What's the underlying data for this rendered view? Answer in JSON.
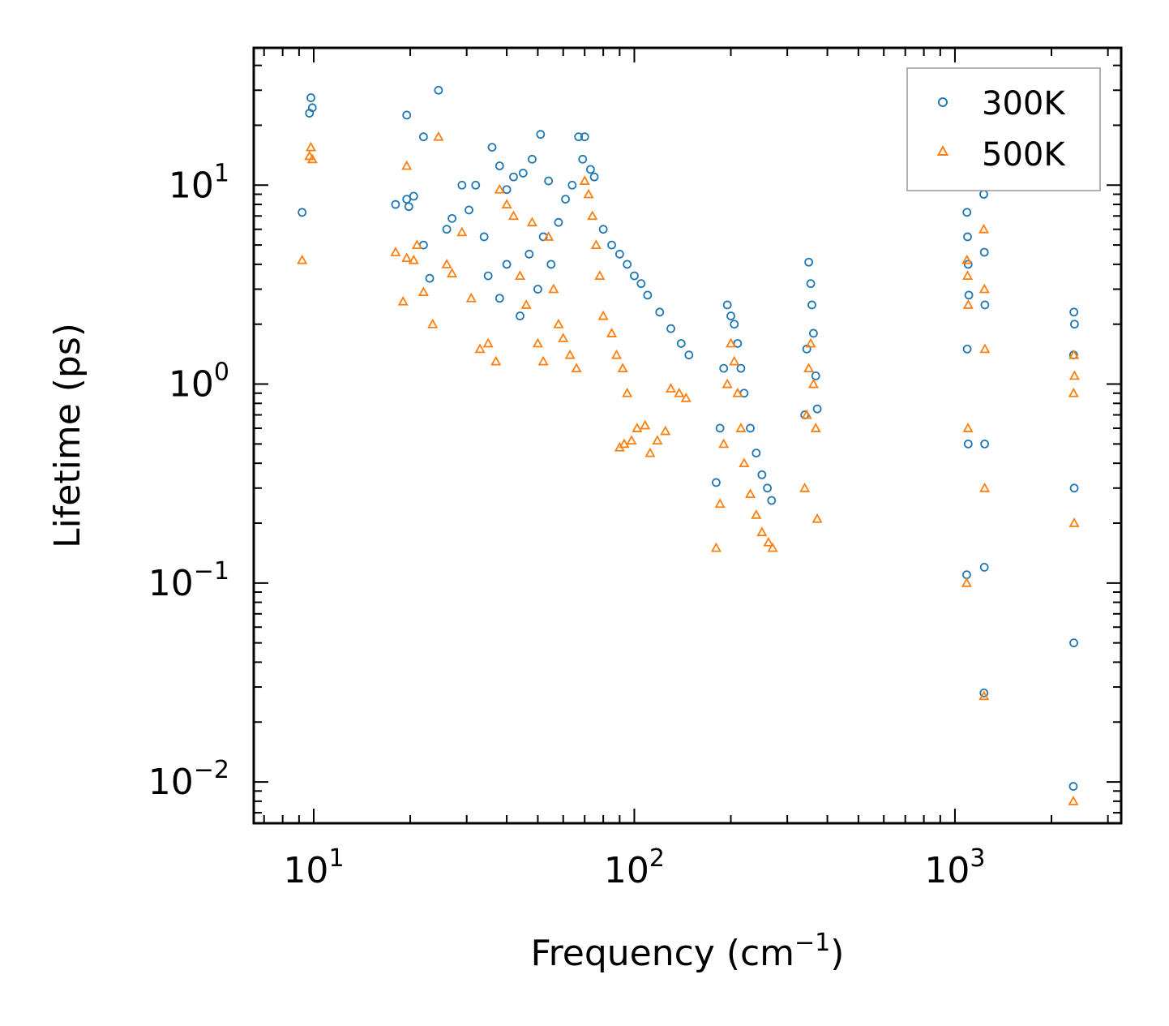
{
  "chart_data": {
    "type": "scatter",
    "title": "",
    "xlabel": "Frequency (cm",
    "xlabel_sup": "−1",
    "xlabel_suffix": ")",
    "ylabel": "Lifetime (ps)",
    "xscale": "log",
    "yscale": "log",
    "xlim": [
      6.5,
      3300
    ],
    "ylim": [
      0.0062,
      49
    ],
    "x_ticks": [
      {
        "value": 10,
        "base": "10",
        "exp": "1"
      },
      {
        "value": 100,
        "base": "10",
        "exp": "2"
      },
      {
        "value": 1000,
        "base": "10",
        "exp": "3"
      }
    ],
    "y_ticks": [
      {
        "value": 0.01,
        "base": "10",
        "exp": "−2"
      },
      {
        "value": 0.1,
        "base": "10",
        "exp": "−1"
      },
      {
        "value": 1,
        "base": "10",
        "exp": "0"
      },
      {
        "value": 10,
        "base": "10",
        "exp": "1"
      }
    ],
    "legend_position": "top-right",
    "series": [
      {
        "name": "300K",
        "marker": "circle",
        "color": "#1f77b4",
        "points": [
          [
            9.8,
            27.5
          ],
          [
            9.9,
            24.5
          ],
          [
            9.7,
            23.0
          ],
          [
            9.2,
            7.3
          ],
          [
            19.5,
            22.5
          ],
          [
            22.0,
            17.5
          ],
          [
            24.5,
            30.0
          ],
          [
            19.5,
            8.5
          ],
          [
            20.5,
            8.8
          ],
          [
            19.8,
            7.8
          ],
          [
            18.0,
            8.0
          ],
          [
            22.0,
            5.0
          ],
          [
            23.0,
            3.4
          ],
          [
            26.0,
            6.0
          ],
          [
            27.0,
            6.8
          ],
          [
            29.0,
            10.0
          ],
          [
            30.5,
            7.5
          ],
          [
            32.0,
            10.0
          ],
          [
            34.0,
            5.5
          ],
          [
            36.0,
            15.5
          ],
          [
            38.0,
            12.5
          ],
          [
            40.0,
            9.5
          ],
          [
            42.0,
            11.0
          ],
          [
            45.0,
            11.5
          ],
          [
            48.0,
            13.5
          ],
          [
            51.0,
            18.0
          ],
          [
            54.0,
            10.5
          ],
          [
            35.0,
            3.5
          ],
          [
            38.0,
            2.7
          ],
          [
            40.0,
            4.0
          ],
          [
            44.0,
            2.2
          ],
          [
            47.0,
            4.5
          ],
          [
            50.0,
            3.0
          ],
          [
            52.0,
            5.5
          ],
          [
            55.0,
            4.0
          ],
          [
            58.0,
            6.5
          ],
          [
            61.0,
            8.5
          ],
          [
            64.0,
            10.0
          ],
          [
            67.0,
            17.5
          ],
          [
            70.0,
            17.5
          ],
          [
            69.0,
            13.5
          ],
          [
            73.0,
            12.0
          ],
          [
            75.0,
            11.0
          ],
          [
            80.0,
            6.0
          ],
          [
            85.0,
            5.0
          ],
          [
            90.0,
            4.5
          ],
          [
            95.0,
            4.0
          ],
          [
            100.0,
            3.5
          ],
          [
            105.0,
            3.2
          ],
          [
            110.0,
            2.8
          ],
          [
            120.0,
            2.3
          ],
          [
            130.0,
            1.9
          ],
          [
            140.0,
            1.6
          ],
          [
            148.0,
            1.4
          ],
          [
            180.0,
            0.32
          ],
          [
            185.0,
            0.6
          ],
          [
            190.0,
            1.2
          ],
          [
            195.0,
            2.5
          ],
          [
            200.0,
            2.2
          ],
          [
            205.0,
            2.0
          ],
          [
            210.0,
            1.6
          ],
          [
            215.0,
            1.2
          ],
          [
            220.0,
            0.9
          ],
          [
            230.0,
            0.6
          ],
          [
            240.0,
            0.45
          ],
          [
            250.0,
            0.35
          ],
          [
            260.0,
            0.3
          ],
          [
            268.0,
            0.26
          ],
          [
            340.0,
            0.7
          ],
          [
            345.0,
            1.5
          ],
          [
            350.0,
            4.1
          ],
          [
            355.0,
            3.2
          ],
          [
            358.0,
            2.5
          ],
          [
            362.0,
            1.8
          ],
          [
            368.0,
            1.1
          ],
          [
            372.0,
            0.75
          ],
          [
            1090.0,
            7.3
          ],
          [
            1095.0,
            5.5
          ],
          [
            1100.0,
            4.0
          ],
          [
            1105.0,
            2.8
          ],
          [
            1088.0,
            0.11
          ],
          [
            1100.0,
            0.5
          ],
          [
            1092.0,
            1.5
          ],
          [
            1230.0,
            9.0
          ],
          [
            1235.0,
            4.6
          ],
          [
            1240.0,
            2.5
          ],
          [
            1232.0,
            0.028
          ],
          [
            1238.0,
            0.5
          ],
          [
            1235.0,
            0.12
          ],
          [
            2350.0,
            2.3
          ],
          [
            2360.0,
            2.0
          ],
          [
            2345.0,
            1.4
          ],
          [
            2340.0,
            0.0095
          ],
          [
            2355.0,
            0.3
          ],
          [
            2348.0,
            0.05
          ]
        ]
      },
      {
        "name": "500K",
        "marker": "triangle",
        "color": "#ff7f0e",
        "points": [
          [
            9.8,
            15.5
          ],
          [
            9.9,
            13.5
          ],
          [
            9.7,
            14.0
          ],
          [
            9.2,
            4.2
          ],
          [
            19.5,
            12.5
          ],
          [
            21.0,
            5.0
          ],
          [
            24.5,
            17.5
          ],
          [
            18.0,
            4.6
          ],
          [
            19.5,
            4.3
          ],
          [
            20.5,
            4.2
          ],
          [
            19.0,
            2.6
          ],
          [
            22.0,
            2.9
          ],
          [
            23.5,
            2.0
          ],
          [
            26.0,
            4.0
          ],
          [
            27.0,
            3.6
          ],
          [
            29.0,
            5.8
          ],
          [
            31.0,
            2.7
          ],
          [
            33.0,
            1.5
          ],
          [
            35.0,
            1.6
          ],
          [
            37.0,
            1.3
          ],
          [
            38.0,
            9.5
          ],
          [
            40.0,
            8.0
          ],
          [
            42.0,
            7.0
          ],
          [
            44.0,
            3.5
          ],
          [
            46.0,
            2.5
          ],
          [
            48.0,
            6.5
          ],
          [
            50.0,
            1.6
          ],
          [
            52.0,
            1.3
          ],
          [
            54.0,
            5.5
          ],
          [
            56.0,
            3.0
          ],
          [
            58.0,
            2.0
          ],
          [
            60.0,
            1.7
          ],
          [
            63.0,
            1.4
          ],
          [
            66.0,
            1.2
          ],
          [
            70.0,
            10.5
          ],
          [
            72.0,
            9.0
          ],
          [
            74.0,
            7.0
          ],
          [
            76.0,
            5.0
          ],
          [
            78.0,
            3.5
          ],
          [
            80.0,
            2.2
          ],
          [
            85.0,
            1.8
          ],
          [
            88.0,
            1.4
          ],
          [
            92.0,
            1.2
          ],
          [
            95.0,
            0.9
          ],
          [
            90.0,
            0.48
          ],
          [
            93.0,
            0.5
          ],
          [
            98.0,
            0.52
          ],
          [
            102.0,
            0.6
          ],
          [
            108.0,
            0.62
          ],
          [
            112.0,
            0.45
          ],
          [
            118.0,
            0.52
          ],
          [
            125.0,
            0.58
          ],
          [
            130.0,
            0.95
          ],
          [
            138.0,
            0.9
          ],
          [
            145.0,
            0.85
          ],
          [
            180.0,
            0.15
          ],
          [
            185.0,
            0.25
          ],
          [
            190.0,
            0.5
          ],
          [
            195.0,
            1.0
          ],
          [
            200.0,
            1.6
          ],
          [
            205.0,
            1.3
          ],
          [
            210.0,
            0.9
          ],
          [
            215.0,
            0.6
          ],
          [
            220.0,
            0.4
          ],
          [
            230.0,
            0.28
          ],
          [
            240.0,
            0.22
          ],
          [
            250.0,
            0.18
          ],
          [
            262.0,
            0.16
          ],
          [
            270.0,
            0.15
          ],
          [
            340.0,
            0.3
          ],
          [
            345.0,
            0.7
          ],
          [
            350.0,
            1.2
          ],
          [
            355.0,
            1.6
          ],
          [
            362.0,
            1.0
          ],
          [
            368.0,
            0.6
          ],
          [
            372.0,
            0.21
          ],
          [
            1090.0,
            4.2
          ],
          [
            1095.0,
            3.5
          ],
          [
            1100.0,
            2.5
          ],
          [
            1088.0,
            0.1
          ],
          [
            1098.0,
            0.6
          ],
          [
            1230.0,
            6.0
          ],
          [
            1236.0,
            3.0
          ],
          [
            1240.0,
            1.5
          ],
          [
            1232.0,
            0.027
          ],
          [
            1238.0,
            0.3
          ],
          [
            2350.0,
            1.4
          ],
          [
            2360.0,
            1.1
          ],
          [
            2345.0,
            0.9
          ],
          [
            2340.0,
            0.008
          ],
          [
            2355.0,
            0.2
          ]
        ]
      }
    ]
  }
}
